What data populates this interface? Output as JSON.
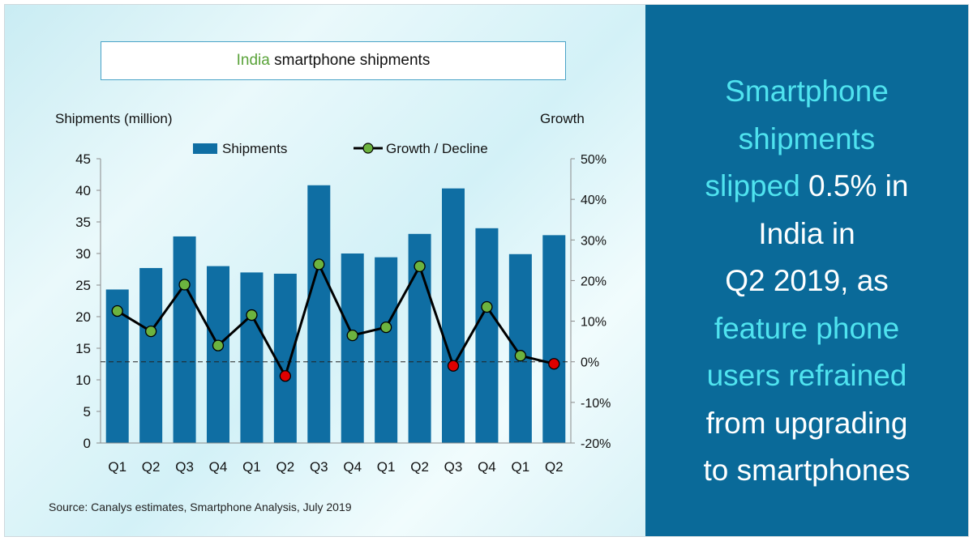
{
  "chart_title": {
    "highlight": "India",
    "rest": "smartphone  shipments"
  },
  "headline": [
    [
      {
        "text": "Smartphone",
        "hl": true
      }
    ],
    [
      {
        "text": "shipments",
        "hl": true
      }
    ],
    [
      {
        "text": "slipped",
        "hl": true
      },
      {
        "text": " 0.5% in",
        "hl": false
      }
    ],
    [
      {
        "text": "India in",
        "hl": false
      }
    ],
    [
      {
        "text": "Q2 2019, as",
        "hl": false
      }
    ],
    [
      {
        "text": "feature phone",
        "hl": true
      }
    ],
    [
      {
        "text": "users refrained",
        "hl": true
      }
    ],
    [
      {
        "text": "from upgrading",
        "hl": false
      }
    ],
    [
      {
        "text": "to smartphones",
        "hl": false
      }
    ]
  ],
  "source": "Source:  Canalys estimates, Smartphone  Analysis, July 2019",
  "colors": {
    "bar": "#0f6ea3",
    "line": "#000000",
    "marker_positive": "#6cb33f",
    "marker_negative": "#e00000",
    "right_panel": "#0a6a99",
    "highlight_text": "#4fe3ef"
  },
  "chart_data": {
    "type": "bar",
    "categories": [
      "Q1",
      "Q2",
      "Q3",
      "Q4",
      "Q1",
      "Q2",
      "Q3",
      "Q4",
      "Q1",
      "Q2",
      "Q3",
      "Q4",
      "Q1",
      "Q2"
    ],
    "series": [
      {
        "name": "Shipments",
        "type": "bar",
        "axis": "left",
        "values": [
          24.3,
          27.7,
          32.7,
          28.0,
          27.0,
          26.8,
          40.8,
          30.0,
          29.4,
          33.1,
          40.3,
          34.0,
          29.9,
          32.9
        ]
      },
      {
        "name": "Growth / Decline",
        "type": "line",
        "axis": "right",
        "values": [
          12.5,
          7.5,
          19.0,
          4.0,
          11.5,
          -3.5,
          24.0,
          6.5,
          8.5,
          23.5,
          -1.0,
          13.5,
          1.5,
          -0.5
        ]
      }
    ],
    "ylabel_left": "Shipments (million)",
    "ylabel_right": "Growth",
    "ylim_left": [
      0,
      45
    ],
    "ylim_right": [
      -20,
      50
    ],
    "yticks_left": [
      "0",
      "5",
      "10",
      "15",
      "20",
      "25",
      "30",
      "35",
      "40",
      "45"
    ],
    "yticks_right": [
      "-20%",
      "-10%",
      "0%",
      "10%",
      "20%",
      "30%",
      "40%",
      "50%"
    ],
    "zero_line": "dashed",
    "legend_position": "top",
    "grid": false
  }
}
